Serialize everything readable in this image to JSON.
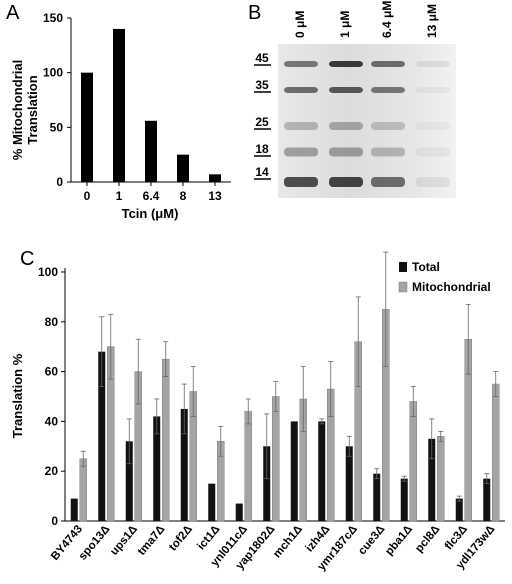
{
  "panels": {
    "a": "A",
    "b": "B",
    "c": "C"
  },
  "chart_data": [
    {
      "type": "bar",
      "panel": "A",
      "categories": [
        "0",
        "1",
        "6.4",
        "8",
        "13"
      ],
      "values": [
        100,
        140,
        56,
        25,
        7
      ],
      "ylim": [
        0,
        150
      ],
      "yticks": [
        0,
        50,
        100,
        150
      ],
      "ylabel_lines": [
        "% Mitochondrial",
        "Translation"
      ],
      "xlabel": "Tcin (μM)",
      "color": "#000000"
    },
    {
      "type": "blot",
      "panel": "B",
      "lane_labels": [
        "0 μM",
        "1 μM",
        "6.4 μM",
        "13 μM"
      ],
      "marker_labels": [
        "45",
        "35",
        "25",
        "18",
        "14"
      ]
    },
    {
      "type": "bar",
      "panel": "C",
      "categories": [
        "BY4743",
        "spo13Δ",
        "ups1Δ",
        "tma7Δ",
        "tof2Δ",
        "ict1Δ",
        "ynl011cΔ",
        "yap1802Δ",
        "mch1Δ",
        "izh4Δ",
        "ymr187cΔ",
        "cue3Δ",
        "pba1Δ",
        "pcl8Δ",
        "flc3Δ",
        "ydl173wΔ"
      ],
      "series": [
        {
          "name": "Total",
          "color": "#111111",
          "values": [
            9,
            68,
            32,
            42,
            45,
            15,
            7,
            30,
            40,
            40,
            30,
            19,
            17,
            33,
            9,
            17
          ],
          "errors": [
            0,
            14,
            9,
            7,
            10,
            0,
            0,
            13,
            0,
            1,
            4,
            2,
            1,
            8,
            1,
            2
          ]
        },
        {
          "name": "Mitochondrial",
          "color": "#a4a4a4",
          "values": [
            25,
            70,
            60,
            65,
            52,
            32,
            44,
            50,
            49,
            53,
            72,
            85,
            48,
            34,
            73,
            55
          ],
          "errors": [
            3,
            13,
            13,
            7,
            10,
            6,
            5,
            6,
            13,
            11,
            18,
            23,
            6,
            2,
            14,
            5
          ]
        }
      ],
      "ylim": [
        0,
        100
      ],
      "yticks": [
        0,
        20,
        40,
        60,
        80,
        100
      ],
      "ylabel": "Translation %",
      "legend_position": "top-right"
    }
  ]
}
